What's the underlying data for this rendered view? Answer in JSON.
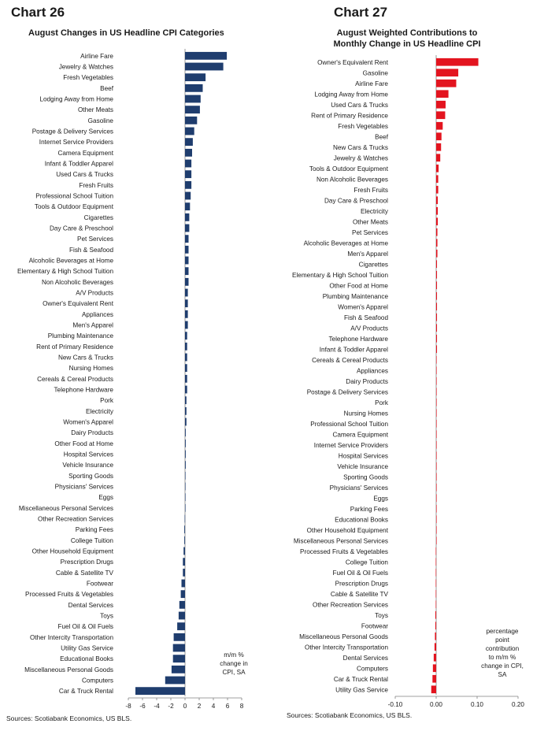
{
  "charts": [
    {
      "heading": "Chart 26",
      "title": "August Changes in US Headline CPI Categories",
      "source": "Sources: Scotiabank Economics, US BLS.",
      "units_note": "m/m %\nchange in\nCPI, SA"
    },
    {
      "heading": "Chart 27",
      "title": "August Weighted Contributions to\nMonthly Change in US Headline CPI",
      "source": "Sources: Scotiabank Economics, US BLS.",
      "units_note": "percentage\npoint\ncontribution\nto m/m %\nchange in CPI,\nSA"
    }
  ],
  "colors": {
    "chart26_bar": "#1f3d6e",
    "chart27_bar": "#e3141f",
    "axis": "#808080"
  },
  "chart_data": [
    {
      "type": "bar",
      "orientation": "horizontal",
      "title": "August Changes in US Headline CPI Categories",
      "xlim": [
        -8,
        8
      ],
      "xticks": [
        "-8",
        "-6",
        "-4",
        "-2",
        "0",
        "2",
        "4",
        "6",
        "8"
      ],
      "categories": [
        "Airline Fare",
        "Jewelry & Watches",
        "Fresh Vegetables",
        "Beef",
        "Lodging Away from Home",
        "Other Meats",
        "Gasoline",
        "Postage & Delivery Services",
        "Internet Service Providers",
        "Camera Equipment",
        "Infant & Toddler Apparel",
        "Used Cars & Trucks",
        "Fresh Fruits",
        "Professional School Tuition",
        "Tools & Outdoor Equipment",
        "Cigarettes",
        "Day Care & Preschool",
        "Pet Services",
        "Fish & Seafood",
        "Alcoholic Beverages at Home",
        "Elementary & High School Tuition",
        "Non Alcoholic Beverages",
        "A/V Products",
        "Owner's Equivalent Rent",
        "Appliances",
        "Men's Apparel",
        "Plumbing Maintenance",
        "Rent of Primary Residence",
        "New Cars & Trucks",
        "Nursing Homes",
        "Cereals & Cereal Products",
        "Telephone Hardware",
        "Pork",
        "Electricity",
        "Women's Apparel",
        "Dairy Products",
        "Other Food at Home",
        "Hospital Services",
        "Vehicle Insurance",
        "Sporting Goods",
        "Physicians' Services",
        "Eggs",
        "Miscellaneous Personal Services",
        "Other Recreation Services",
        "Parking Fees",
        "College Tuition",
        "Other Household Equipment",
        "Prescription Drugs",
        "Cable & Satellite TV",
        "Footwear",
        "Processed Fruits & Vegetables",
        "Dental Services",
        "Toys",
        "Fuel Oil & Oil Fuels",
        "Other Intercity Transportation",
        "Utility Gas Service",
        "Educational Books",
        "Miscellaneous Personal Goods",
        "Computers",
        "Car & Truck Rental"
      ],
      "values": [
        5.9,
        5.4,
        2.9,
        2.5,
        2.2,
        2.1,
        1.7,
        1.3,
        1.1,
        1.0,
        0.9,
        0.9,
        0.9,
        0.8,
        0.7,
        0.6,
        0.6,
        0.5,
        0.5,
        0.5,
        0.5,
        0.5,
        0.4,
        0.4,
        0.4,
        0.4,
        0.3,
        0.3,
        0.3,
        0.3,
        0.3,
        0.3,
        0.2,
        0.2,
        0.2,
        0.1,
        0.1,
        0.1,
        0.1,
        0.05,
        0.05,
        0.0,
        0.0,
        -0.05,
        -0.1,
        -0.1,
        -0.2,
        -0.3,
        -0.3,
        -0.5,
        -0.6,
        -0.8,
        -0.9,
        -1.1,
        -1.6,
        -1.7,
        -1.7,
        -1.9,
        -2.8,
        -7.0
      ]
    },
    {
      "type": "bar",
      "orientation": "horizontal",
      "title": "August Weighted Contributions to Monthly Change in US Headline CPI",
      "xlim": [
        -0.1,
        0.2
      ],
      "xticks": [
        "-0.10",
        "0.00",
        "0.10",
        "0.20"
      ],
      "categories": [
        "Owner's Equivalent Rent",
        "Gasoline",
        "Airline Fare",
        "Lodging Away from Home",
        "Used Cars & Trucks",
        "Rent of Primary Residence",
        "Fresh Vegetables",
        "Beef",
        "New Cars & Trucks",
        "Jewelry & Watches",
        "Tools & Outdoor Equipment",
        "Non Alcoholic Beverages",
        "Fresh Fruits",
        "Day Care & Preschool",
        "Electricity",
        "Other Meats",
        "Pet Services",
        "Alcoholic Beverages at Home",
        "Men's Apparel",
        "Cigarettes",
        "Elementary & High School Tuition",
        "Other Food at Home",
        "Plumbing Maintenance",
        "Women's Apparel",
        "Fish & Seafood",
        "A/V Products",
        "Telephone Hardware",
        "Infant & Toddler Apparel",
        "Cereals & Cereal Products",
        "Appliances",
        "Dairy Products",
        "Postage & Delivery Services",
        "Pork",
        "Nursing Homes",
        "Professional School Tuition",
        "Camera Equipment",
        "Internet Service Providers",
        "Hospital Services",
        "Vehicle Insurance",
        "Sporting Goods",
        "Physicians' Services",
        "Eggs",
        "Parking Fees",
        "Educational Books",
        "Other Household Equipment",
        "Miscellaneous Personal Services",
        "Processed Fruits & Vegetables",
        "College Tuition",
        "Fuel Oil & Oil Fuels",
        "Prescription Drugs",
        "Cable & Satellite TV",
        "Other Recreation Services",
        "Toys",
        "Footwear",
        "Miscellaneous Personal Goods",
        "Other Intercity Transportation",
        "Dental Services",
        "Computers",
        "Car & Truck Rental",
        "Utility Gas Service"
      ],
      "values": [
        0.103,
        0.054,
        0.049,
        0.03,
        0.023,
        0.022,
        0.016,
        0.013,
        0.012,
        0.01,
        0.006,
        0.005,
        0.005,
        0.004,
        0.004,
        0.004,
        0.003,
        0.003,
        0.003,
        0.002,
        0.002,
        0.002,
        0.002,
        0.002,
        0.002,
        0.002,
        0.002,
        0.002,
        0.001,
        0.001,
        0.001,
        0.001,
        0.001,
        0.001,
        0.001,
        0.001,
        0.001,
        0.001,
        0.001,
        0.0,
        0.0,
        0.0,
        0.0,
        0.0,
        0.0,
        0.0,
        -0.001,
        -0.001,
        -0.001,
        -0.001,
        -0.001,
        -0.001,
        -0.002,
        -0.002,
        -0.003,
        -0.004,
        -0.006,
        -0.008,
        -0.009,
        -0.012
      ]
    }
  ]
}
